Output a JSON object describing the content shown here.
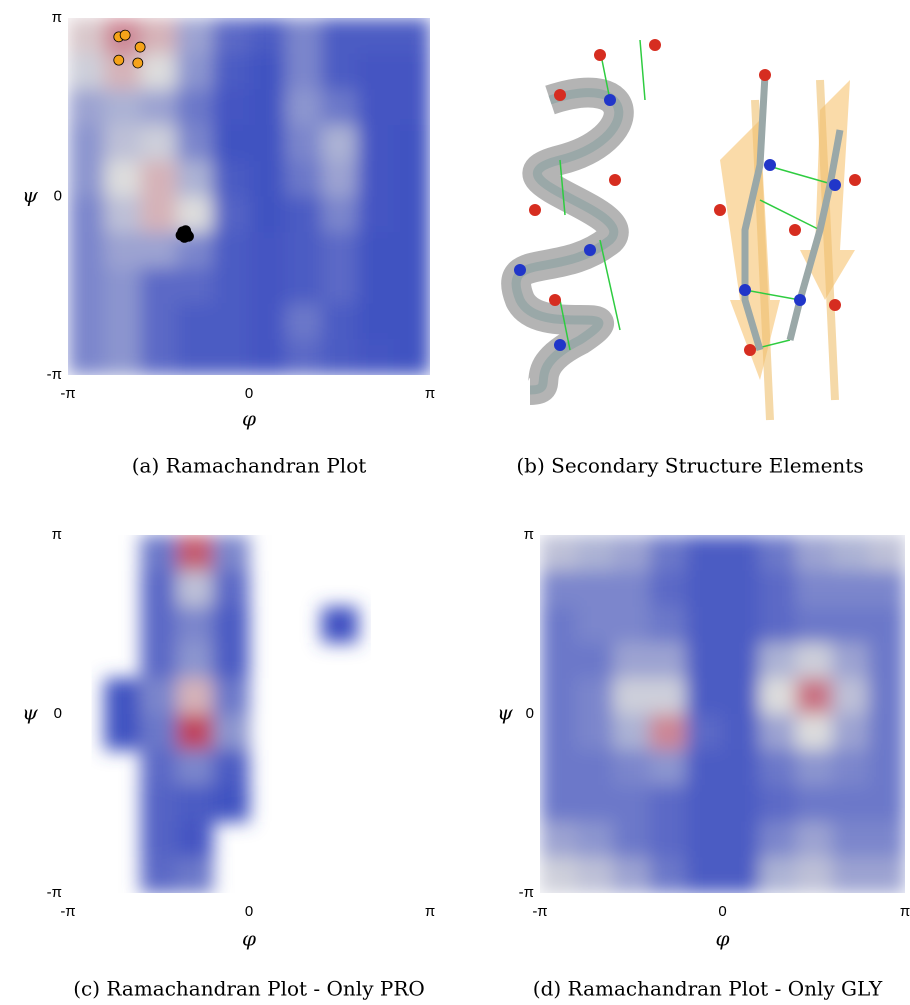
{
  "chart_data": [
    {
      "type": "heatmap",
      "caption": "(a) Ramachandran Plot",
      "xlabel": "φ",
      "ylabel": "ψ",
      "xlim": [
        -3.141592653589793,
        3.141592653589793
      ],
      "ylim": [
        -3.141592653589793,
        3.141592653589793
      ],
      "xticks": [
        {
          "value": -3.141592653589793,
          "label": "-π"
        },
        0,
        {
          "value": 3.141592653589793,
          "label": "π"
        }
      ],
      "yticks": [
        {
          "value": -3.141592653589793,
          "label": "-π"
        },
        0,
        {
          "value": 3.141592653589793,
          "label": "π"
        }
      ],
      "z": [
        [
          0.55,
          0.7,
          0.6,
          0.3,
          0.1,
          0.05,
          0.2,
          0.05,
          0.05,
          0.05
        ],
        [
          0.45,
          0.6,
          0.5,
          0.25,
          0.05,
          0.02,
          0.2,
          0.05,
          0.03,
          0.03
        ],
        [
          0.3,
          0.35,
          0.3,
          0.15,
          0.03,
          0.02,
          0.25,
          0.15,
          0.03,
          0.03
        ],
        [
          0.25,
          0.4,
          0.45,
          0.2,
          0.02,
          0.02,
          0.2,
          0.35,
          0.03,
          0.02
        ],
        [
          0.25,
          0.5,
          0.6,
          0.35,
          0.05,
          0.02,
          0.15,
          0.3,
          0.03,
          0.02
        ],
        [
          0.2,
          0.4,
          0.6,
          0.5,
          0.08,
          0.02,
          0.05,
          0.2,
          0.03,
          0.02
        ],
        [
          0.2,
          0.3,
          0.3,
          0.2,
          0.05,
          0.03,
          0.05,
          0.1,
          0.02,
          0.02
        ],
        [
          0.2,
          0.25,
          0.1,
          0.1,
          0.05,
          0.03,
          0.05,
          0.1,
          0.02,
          0.02
        ],
        [
          0.2,
          0.25,
          0.1,
          0.05,
          0.05,
          0.03,
          0.15,
          0.05,
          0.02,
          0.02
        ],
        [
          0.2,
          0.25,
          0.1,
          0.05,
          0.05,
          0.03,
          0.1,
          0.05,
          0.03,
          0.02
        ]
      ],
      "points": [
        {
          "color": "#f5a31a",
          "x": [
            -2.26,
            -2.15,
            -1.89,
            -2.26,
            -1.93
          ],
          "y": [
            2.81,
            2.84,
            2.63,
            2.4,
            2.35
          ]
        },
        {
          "color": "#000000",
          "x": [
            -1.15,
            -1.08,
            -1.12,
            -1.05,
            -1.18,
            -1.1
          ],
          "y": [
            -0.62,
            -0.66,
            -0.72,
            -0.7,
            -0.68,
            -0.6
          ]
        }
      ]
    },
    {
      "type": "heatmap",
      "caption": "(c) Ramachandran Plot - Only PRO",
      "xlabel": "φ",
      "ylabel": "ψ",
      "xlim": [
        -3.141592653589793,
        3.141592653589793
      ],
      "ylim": [
        -3.141592653589793,
        3.141592653589793
      ],
      "xticks": [
        {
          "value": -3.141592653589793,
          "label": "-π"
        },
        0,
        {
          "value": 3.141592653589793,
          "label": "π"
        }
      ],
      "yticks": [
        {
          "value": -3.141592653589793,
          "label": "-π"
        },
        0,
        {
          "value": 3.141592653589793,
          "label": "π"
        }
      ],
      "z": [
        [
          0,
          0,
          0.15,
          0.8,
          0.2,
          0,
          0,
          0,
          0,
          0
        ],
        [
          0,
          0,
          0.1,
          0.4,
          0.1,
          0,
          0,
          0,
          0,
          0
        ],
        [
          0,
          0,
          0.1,
          0.2,
          0.05,
          0,
          0,
          0.01,
          0,
          0
        ],
        [
          0,
          0,
          0.1,
          0.25,
          0.05,
          0,
          0,
          0,
          0,
          0
        ],
        [
          0,
          0.02,
          0.2,
          0.6,
          0.15,
          0,
          0,
          0,
          0,
          0
        ],
        [
          0,
          0.02,
          0.15,
          0.85,
          0.25,
          0,
          0,
          0,
          0,
          0
        ],
        [
          0,
          0,
          0.1,
          0.2,
          0.05,
          0,
          0,
          0,
          0,
          0
        ],
        [
          0,
          0,
          0.08,
          0.05,
          0.02,
          0,
          0,
          0,
          0,
          0
        ],
        [
          0,
          0,
          0.08,
          0.03,
          0,
          0,
          0,
          0,
          0,
          0
        ],
        [
          0,
          0,
          0.1,
          0.15,
          0,
          0,
          0,
          0,
          0,
          0
        ]
      ]
    },
    {
      "type": "heatmap",
      "caption": "(d) Ramachandran Plot - Only GLY",
      "xlabel": "φ",
      "ylabel": "ψ",
      "xlim": [
        -3.141592653589793,
        3.141592653589793
      ],
      "ylim": [
        -3.141592653589793,
        3.141592653589793
      ],
      "xticks": [
        {
          "value": -3.141592653589793,
          "label": "-π"
        },
        0,
        {
          "value": 3.141592653589793,
          "label": "π"
        }
      ],
      "yticks": [
        {
          "value": -3.141592653589793,
          "label": "-π"
        },
        0,
        {
          "value": 3.141592653589793,
          "label": "π"
        }
      ],
      "z": [
        [
          0.4,
          0.35,
          0.3,
          0.15,
          0.05,
          0.05,
          0.15,
          0.3,
          0.35,
          0.4
        ],
        [
          0.2,
          0.2,
          0.2,
          0.1,
          0.05,
          0.05,
          0.1,
          0.2,
          0.2,
          0.2
        ],
        [
          0.15,
          0.2,
          0.2,
          0.15,
          0.05,
          0.05,
          0.1,
          0.15,
          0.15,
          0.15
        ],
        [
          0.15,
          0.15,
          0.3,
          0.3,
          0.05,
          0.05,
          0.35,
          0.45,
          0.3,
          0.15
        ],
        [
          0.15,
          0.2,
          0.45,
          0.45,
          0.05,
          0.05,
          0.5,
          0.75,
          0.4,
          0.15
        ],
        [
          0.15,
          0.2,
          0.35,
          0.7,
          0.1,
          0.05,
          0.3,
          0.5,
          0.3,
          0.15
        ],
        [
          0.15,
          0.15,
          0.2,
          0.25,
          0.05,
          0.05,
          0.15,
          0.25,
          0.2,
          0.15
        ],
        [
          0.15,
          0.15,
          0.15,
          0.1,
          0.05,
          0.05,
          0.1,
          0.15,
          0.15,
          0.15
        ],
        [
          0.3,
          0.25,
          0.15,
          0.1,
          0.05,
          0.05,
          0.2,
          0.3,
          0.2,
          0.2
        ],
        [
          0.45,
          0.4,
          0.3,
          0.15,
          0.05,
          0.05,
          0.35,
          0.4,
          0.3,
          0.3
        ]
      ]
    }
  ],
  "panel_b": {
    "caption": "(b) Secondary Structure Elements"
  }
}
